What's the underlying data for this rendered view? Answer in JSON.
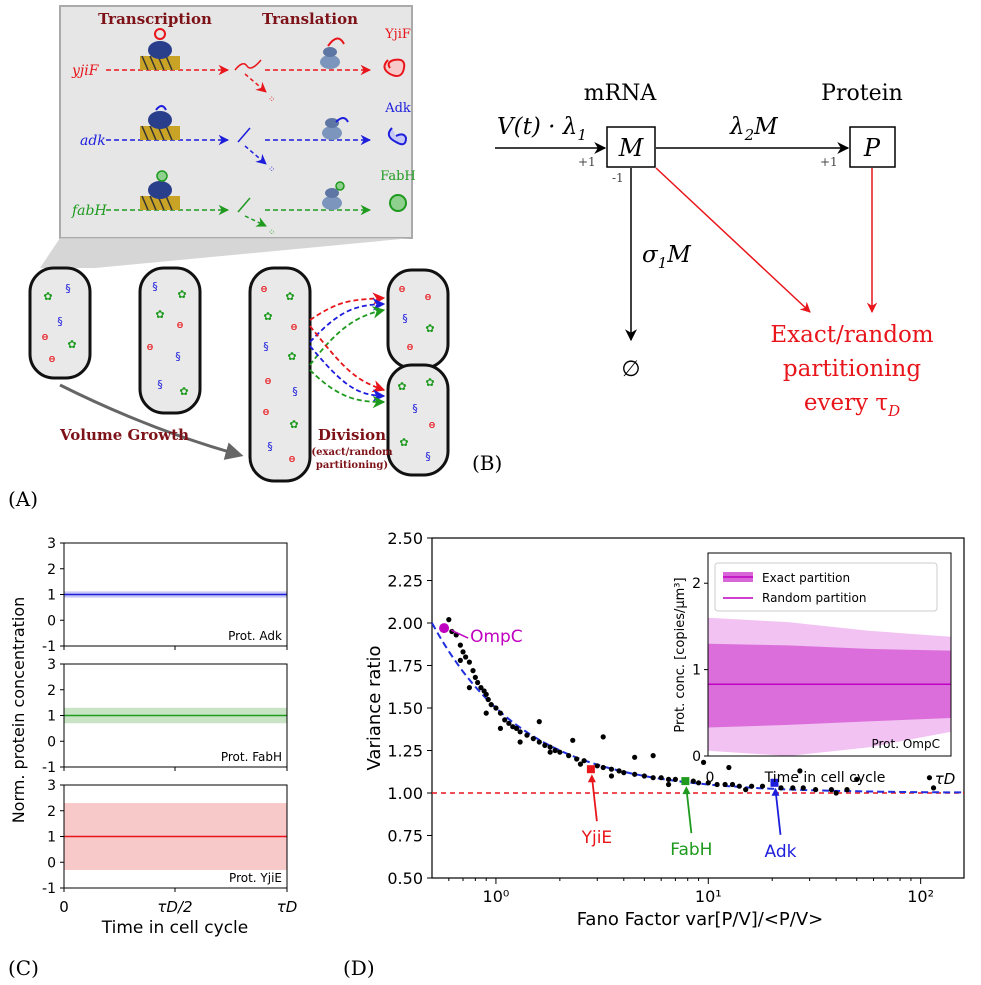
{
  "colors": {
    "red": "#e8151b",
    "blue": "#1d1ddc",
    "green": "#1e9a1e",
    "dark_red": "#7d1218",
    "magenta": "#c000c0",
    "navy_dash": "#1f2fdd",
    "panel_gray": "#e6e6e6",
    "cell_gray": "#e9e9e9"
  },
  "panel_a": {
    "label": "(A)",
    "transcription": "Transcription",
    "translation": "Translation",
    "genes": [
      "yjiF",
      "adk",
      "fabH"
    ],
    "proteins": [
      "YjiF",
      "Adk",
      "FabH"
    ],
    "volume_growth": "Volume Growth",
    "division": "Division",
    "division_sub1": "(exact/random",
    "division_sub2": "partitioning)"
  },
  "panel_b": {
    "label": "(B)",
    "mrna": "mRNA",
    "protein": "Protein",
    "m_box": "M",
    "p_box": "P",
    "input_rate": "V(t) · λ",
    "input_rate_sub": "1",
    "trans_rate": "λ",
    "trans_rate_sub": "2",
    "trans_rate_var": "M",
    "decay_rate": "σ",
    "decay_rate_sub": "1",
    "decay_rate_var": "M",
    "plus_one": "+1",
    "minus_one": "-1",
    "empty": "∅",
    "partition_line1": "Exact/random",
    "partition_line2": "partitioning",
    "partition_line3": "every τ",
    "partition_sub": "D"
  },
  "panel_c": {
    "label": "(C)",
    "ylabel": "Norm. protein concentration",
    "xlabel": "Time in cell cycle",
    "xticks": [
      "0",
      "τD/2",
      "τD"
    ],
    "yticks": [
      "-1",
      "0",
      "1",
      "2",
      "3"
    ],
    "subplots": [
      {
        "name": "Prot. Adk",
        "color": "#1d1ddc",
        "band": "#c7c8f5",
        "mean": 1.0,
        "band_low": 0.88,
        "band_high": 1.12
      },
      {
        "name": "Prot. FabH",
        "color": "#1e9a1e",
        "band": "#c9e4c5",
        "mean": 1.0,
        "band_low": 0.7,
        "band_high": 1.3
      },
      {
        "name": "Prot. YjiE",
        "color": "#e8151b",
        "band": "#f8c9c9",
        "mean": 1.0,
        "band_low": -0.3,
        "band_high": 2.3
      }
    ]
  },
  "panel_d": {
    "label": "(D)",
    "ylabel": "Variance ratio",
    "xlabel": "Fano Factor var[P/V]/<P/V>",
    "yticks": [
      "0.50",
      "0.75",
      "1.00",
      "1.25",
      "1.50",
      "1.75",
      "2.00",
      "2.25",
      "2.50"
    ],
    "xticks": [
      "10⁰",
      "10¹",
      "10²"
    ],
    "annotations": [
      {
        "text": "OmpC",
        "color": "#c000c0",
        "x": 0.57,
        "y": 1.97
      },
      {
        "text": "YjiE",
        "color": "#e8151b",
        "x": 2.8,
        "y": 1.14
      },
      {
        "text": "FabH",
        "color": "#1e9a1e",
        "x": 7.8,
        "y": 1.07
      },
      {
        "text": "Adk",
        "color": "#1d1ddc",
        "x": 20.5,
        "y": 1.06
      }
    ],
    "inset": {
      "ylabel": "Prot. conc. [copies/μm³]",
      "xlabel": "Time in cell cycle",
      "xticks": [
        "0",
        "τD"
      ],
      "yticks": [
        "0",
        "1",
        "2"
      ],
      "legend": [
        "Exact partition",
        "Random partition"
      ],
      "name": "Prot. OmpC",
      "mean": 0.83,
      "exact_band": [
        0.32,
        1.3
      ],
      "random_band": [
        0.0,
        1.6
      ]
    }
  },
  "chart_data": {
    "type": "scatter",
    "x_scale": "log",
    "xlim": [
      0.5,
      160
    ],
    "ylim": [
      0.5,
      2.5
    ],
    "reference_line": 1.0,
    "fit_curve": "1 + 0.5/x",
    "points": [
      [
        0.57,
        1.97
      ],
      [
        0.6,
        2.02
      ],
      [
        0.62,
        1.95
      ],
      [
        0.65,
        1.93
      ],
      [
        0.68,
        1.87
      ],
      [
        0.7,
        1.83
      ],
      [
        0.72,
        1.8
      ],
      [
        0.75,
        1.77
      ],
      [
        0.78,
        1.72
      ],
      [
        0.8,
        1.68
      ],
      [
        0.82,
        1.65
      ],
      [
        0.85,
        1.62
      ],
      [
        0.88,
        1.6
      ],
      [
        0.9,
        1.58
      ],
      [
        0.92,
        1.55
      ],
      [
        0.95,
        1.52
      ],
      [
        1.0,
        1.5
      ],
      [
        1.05,
        1.47
      ],
      [
        1.1,
        1.43
      ],
      [
        1.15,
        1.41
      ],
      [
        1.2,
        1.39
      ],
      [
        1.25,
        1.38
      ],
      [
        1.3,
        1.36
      ],
      [
        1.4,
        1.34
      ],
      [
        1.5,
        1.32
      ],
      [
        1.6,
        1.3
      ],
      [
        1.7,
        1.28
      ],
      [
        1.8,
        1.27
      ],
      [
        1.9,
        1.25
      ],
      [
        2.0,
        1.24
      ],
      [
        2.2,
        1.22
      ],
      [
        2.4,
        1.2
      ],
      [
        2.6,
        1.19
      ],
      [
        2.8,
        1.14
      ],
      [
        3.0,
        1.16
      ],
      [
        3.2,
        1.15
      ],
      [
        3.5,
        1.14
      ],
      [
        3.8,
        1.13
      ],
      [
        4.0,
        1.12
      ],
      [
        4.5,
        1.11
      ],
      [
        5.0,
        1.1
      ],
      [
        5.5,
        1.09
      ],
      [
        6.0,
        1.09
      ],
      [
        6.5,
        1.08
      ],
      [
        7.0,
        1.08
      ],
      [
        7.8,
        1.07
      ],
      [
        8.5,
        1.07
      ],
      [
        9.0,
        1.06
      ],
      [
        10.0,
        1.06
      ],
      [
        11.0,
        1.05
      ],
      [
        12.0,
        1.05
      ],
      [
        13.0,
        1.05
      ],
      [
        14.0,
        1.04
      ],
      [
        16.0,
        1.04
      ],
      [
        18.0,
        1.04
      ],
      [
        20.5,
        1.06
      ],
      [
        22.0,
        1.03
      ],
      [
        25.0,
        1.03
      ],
      [
        28.0,
        1.03
      ],
      [
        32.0,
        1.02
      ],
      [
        38.0,
        1.02
      ],
      [
        45.0,
        1.02
      ],
      [
        3.2,
        1.33
      ],
      [
        1.6,
        1.42
      ],
      [
        2.3,
        1.31
      ],
      [
        4.5,
        1.21
      ],
      [
        5.5,
        1.22
      ],
      [
        9.5,
        1.18
      ],
      [
        12.5,
        1.15
      ],
      [
        27.0,
        1.13
      ],
      [
        50.0,
        1.08
      ],
      [
        110.0,
        1.09
      ],
      [
        115.0,
        1.03
      ],
      [
        0.68,
        1.78
      ],
      [
        0.75,
        1.62
      ],
      [
        0.9,
        1.47
      ],
      [
        1.05,
        1.38
      ],
      [
        1.3,
        1.3
      ],
      [
        1.8,
        1.24
      ],
      [
        2.5,
        1.17
      ],
      [
        3.5,
        1.1
      ],
      [
        6.5,
        1.05
      ],
      [
        15.0,
        1.02
      ],
      [
        40.0,
        1.0
      ]
    ]
  }
}
